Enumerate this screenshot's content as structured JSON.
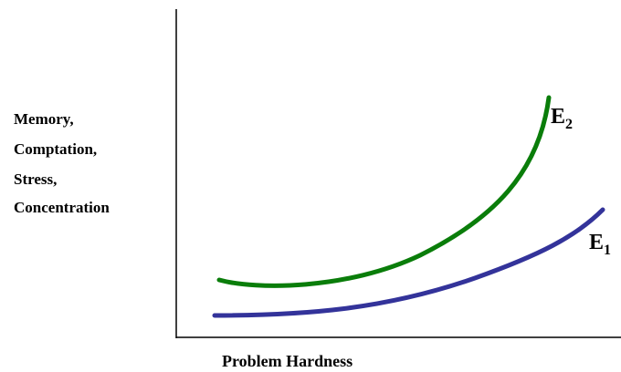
{
  "y_axis_label": [
    "Memory,",
    "Comptation,",
    "Stress,",
    "Concentration"
  ],
  "x_axis_label": "Problem Hardness",
  "curves": [
    {
      "letter": "E",
      "subscript": "2"
    },
    {
      "letter": "E",
      "subscript": "1"
    }
  ]
}
